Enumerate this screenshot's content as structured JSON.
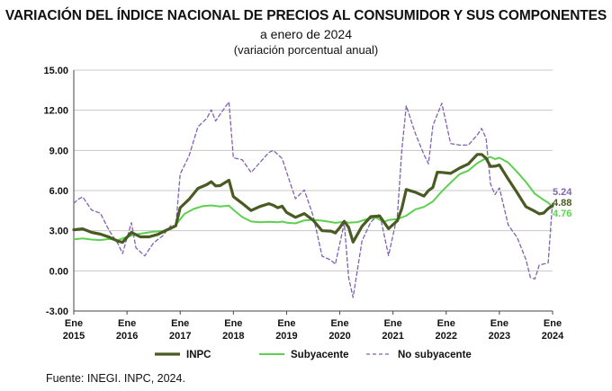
{
  "header": {
    "title": "VARIACIÓN DEL ÍNDICE NACIONAL DE PRECIOS AL CONSUMIDOR Y SUS COMPONENTES",
    "subtitle": "a enero de 2024",
    "subtitle2": "(variación porcentual anual)"
  },
  "footer": {
    "source": "Fuente: INEGI. INPC, 2024."
  },
  "colors": {
    "inpc": "#4a5a23",
    "subyacente": "#5bd14f",
    "no_subyacente": "#7f63ad",
    "grid": "#c8c8c8",
    "axis": "#444444"
  },
  "chart_data": {
    "type": "line",
    "title": "VARIACIÓN DEL ÍNDICE NACIONAL DE PRECIOS AL CONSUMIDOR Y SUS COMPONENTES",
    "ylim": [
      -3,
      15
    ],
    "ytick_labels": [
      "15.00",
      "12.00",
      "9.00",
      "6.00",
      "3.00",
      "0.00",
      "-3.00"
    ],
    "yticks": [
      15,
      12,
      9,
      6,
      3,
      0,
      -3
    ],
    "xlim": [
      "2015-01",
      "2024-01"
    ],
    "xtick_labels": [
      [
        "Ene",
        "2015"
      ],
      [
        "Ene",
        "2016"
      ],
      [
        "Ene",
        "2017"
      ],
      [
        "Ene",
        "2018"
      ],
      [
        "Ene",
        "2019"
      ],
      [
        "Ene",
        "2020"
      ],
      [
        "Ene",
        "2021"
      ],
      [
        "Ene",
        "2022"
      ],
      [
        "Ene",
        "2023"
      ],
      [
        "Ene",
        "2024"
      ]
    ],
    "xtick_positions": [
      "2015-01",
      "2016-01",
      "2017-01",
      "2018-01",
      "2019-01",
      "2020-01",
      "2021-01",
      "2022-01",
      "2023-01",
      "2024-01"
    ],
    "grid": "horizontal",
    "legend": "bottom",
    "end_labels": [
      "5.24",
      "4.88",
      "4.76"
    ],
    "series": [
      {
        "name": "INPC",
        "style": "solid-thick",
        "points": [
          [
            "2015-01",
            3.07
          ],
          [
            "2015-03",
            3.14
          ],
          [
            "2015-05",
            2.88
          ],
          [
            "2015-07",
            2.74
          ],
          [
            "2015-09",
            2.52
          ],
          [
            "2015-11",
            2.21
          ],
          [
            "2015-12",
            2.13
          ],
          [
            "2016-02",
            2.87
          ],
          [
            "2016-04",
            2.54
          ],
          [
            "2016-06",
            2.54
          ],
          [
            "2016-08",
            2.73
          ],
          [
            "2016-10",
            3.06
          ],
          [
            "2016-12",
            3.36
          ],
          [
            "2017-01",
            4.72
          ],
          [
            "2017-03",
            5.35
          ],
          [
            "2017-05",
            6.16
          ],
          [
            "2017-07",
            6.44
          ],
          [
            "2017-08",
            6.66
          ],
          [
            "2017-09",
            6.35
          ],
          [
            "2017-10",
            6.37
          ],
          [
            "2017-12",
            6.77
          ],
          [
            "2018-01",
            5.55
          ],
          [
            "2018-03",
            5.04
          ],
          [
            "2018-05",
            4.51
          ],
          [
            "2018-07",
            4.81
          ],
          [
            "2018-09",
            5.02
          ],
          [
            "2018-10",
            4.9
          ],
          [
            "2018-11",
            4.72
          ],
          [
            "2018-12",
            4.83
          ],
          [
            "2019-01",
            4.37
          ],
          [
            "2019-03",
            4.0
          ],
          [
            "2019-05",
            4.28
          ],
          [
            "2019-07",
            3.78
          ],
          [
            "2019-09",
            3.0
          ],
          [
            "2019-11",
            2.97
          ],
          [
            "2019-12",
            2.83
          ],
          [
            "2020-01",
            3.24
          ],
          [
            "2020-02",
            3.7
          ],
          [
            "2020-03",
            3.25
          ],
          [
            "2020-04",
            2.15
          ],
          [
            "2020-06",
            3.33
          ],
          [
            "2020-08",
            4.05
          ],
          [
            "2020-10",
            4.09
          ],
          [
            "2020-12",
            3.15
          ],
          [
            "2021-02",
            3.76
          ],
          [
            "2021-03",
            4.67
          ],
          [
            "2021-04",
            6.08
          ],
          [
            "2021-06",
            5.88
          ],
          [
            "2021-08",
            5.59
          ],
          [
            "2021-09",
            6.0
          ],
          [
            "2021-10",
            6.24
          ],
          [
            "2021-11",
            7.37
          ],
          [
            "2021-12",
            7.36
          ],
          [
            "2022-02",
            7.28
          ],
          [
            "2022-04",
            7.68
          ],
          [
            "2022-06",
            7.99
          ],
          [
            "2022-08",
            8.7
          ],
          [
            "2022-09",
            8.7
          ],
          [
            "2022-10",
            8.41
          ],
          [
            "2022-11",
            7.8
          ],
          [
            "2022-12",
            7.82
          ],
          [
            "2023-01",
            7.91
          ],
          [
            "2023-03",
            6.85
          ],
          [
            "2023-05",
            5.84
          ],
          [
            "2023-07",
            4.79
          ],
          [
            "2023-09",
            4.45
          ],
          [
            "2023-10",
            4.26
          ],
          [
            "2023-11",
            4.32
          ],
          [
            "2023-12",
            4.66
          ],
          [
            "2024-01",
            4.88
          ]
        ]
      },
      {
        "name": "Subyacente",
        "style": "solid",
        "points": [
          [
            "2015-01",
            2.35
          ],
          [
            "2015-03",
            2.42
          ],
          [
            "2015-05",
            2.34
          ],
          [
            "2015-07",
            2.3
          ],
          [
            "2015-09",
            2.38
          ],
          [
            "2015-11",
            2.3
          ],
          [
            "2016-01",
            2.54
          ],
          [
            "2016-03",
            2.73
          ],
          [
            "2016-05",
            2.83
          ],
          [
            "2016-07",
            2.93
          ],
          [
            "2016-09",
            2.97
          ],
          [
            "2016-11",
            3.13
          ],
          [
            "2016-12",
            3.44
          ],
          [
            "2017-02",
            4.26
          ],
          [
            "2017-04",
            4.62
          ],
          [
            "2017-06",
            4.83
          ],
          [
            "2017-08",
            4.89
          ],
          [
            "2017-10",
            4.81
          ],
          [
            "2017-12",
            4.87
          ],
          [
            "2018-01",
            4.56
          ],
          [
            "2018-03",
            4.02
          ],
          [
            "2018-05",
            3.69
          ],
          [
            "2018-07",
            3.63
          ],
          [
            "2018-09",
            3.67
          ],
          [
            "2018-11",
            3.63
          ],
          [
            "2018-12",
            3.68
          ],
          [
            "2019-01",
            3.6
          ],
          [
            "2019-03",
            3.55
          ],
          [
            "2019-05",
            3.77
          ],
          [
            "2019-07",
            3.82
          ],
          [
            "2019-09",
            3.75
          ],
          [
            "2019-11",
            3.65
          ],
          [
            "2019-12",
            3.59
          ],
          [
            "2020-02",
            3.66
          ],
          [
            "2020-03",
            3.6
          ],
          [
            "2020-05",
            3.64
          ],
          [
            "2020-07",
            3.85
          ],
          [
            "2020-09",
            3.99
          ],
          [
            "2020-11",
            3.66
          ],
          [
            "2020-12",
            3.8
          ],
          [
            "2021-02",
            3.87
          ],
          [
            "2021-04",
            4.12
          ],
          [
            "2021-06",
            4.58
          ],
          [
            "2021-08",
            4.78
          ],
          [
            "2021-10",
            5.19
          ],
          [
            "2021-12",
            5.94
          ],
          [
            "2022-02",
            6.59
          ],
          [
            "2022-04",
            7.22
          ],
          [
            "2022-06",
            7.49
          ],
          [
            "2022-08",
            8.05
          ],
          [
            "2022-10",
            8.42
          ],
          [
            "2022-11",
            8.51
          ],
          [
            "2022-12",
            8.35
          ],
          [
            "2023-01",
            8.45
          ],
          [
            "2023-03",
            8.09
          ],
          [
            "2023-05",
            7.39
          ],
          [
            "2023-07",
            6.64
          ],
          [
            "2023-09",
            5.76
          ],
          [
            "2023-11",
            5.3
          ],
          [
            "2023-12",
            5.09
          ],
          [
            "2024-01",
            4.76
          ]
        ]
      },
      {
        "name": "No subyacente",
        "style": "dashed",
        "points": [
          [
            "2015-01",
            5.05
          ],
          [
            "2015-02",
            5.35
          ],
          [
            "2015-03",
            5.53
          ],
          [
            "2015-05",
            4.55
          ],
          [
            "2015-07",
            4.3
          ],
          [
            "2015-09",
            3.0
          ],
          [
            "2015-11",
            2.0
          ],
          [
            "2015-12",
            1.29
          ],
          [
            "2016-02",
            3.6
          ],
          [
            "2016-03",
            1.73
          ],
          [
            "2016-05",
            1.12
          ],
          [
            "2016-07",
            2.1
          ],
          [
            "2016-09",
            2.6
          ],
          [
            "2016-11",
            3.43
          ],
          [
            "2016-12",
            3.33
          ],
          [
            "2017-01",
            7.23
          ],
          [
            "2017-03",
            8.6
          ],
          [
            "2017-05",
            10.76
          ],
          [
            "2017-07",
            11.4
          ],
          [
            "2017-08",
            12.03
          ],
          [
            "2017-09",
            11.2
          ],
          [
            "2017-10",
            11.7
          ],
          [
            "2017-12",
            12.62
          ],
          [
            "2018-01",
            8.45
          ],
          [
            "2018-03",
            8.3
          ],
          [
            "2018-05",
            7.35
          ],
          [
            "2018-07",
            8.1
          ],
          [
            "2018-09",
            8.85
          ],
          [
            "2018-10",
            9.0
          ],
          [
            "2018-12",
            8.4
          ],
          [
            "2019-01",
            7.39
          ],
          [
            "2019-03",
            5.39
          ],
          [
            "2019-05",
            6.05
          ],
          [
            "2019-07",
            4.1
          ],
          [
            "2019-09",
            1.1
          ],
          [
            "2019-11",
            0.8
          ],
          [
            "2019-12",
            0.49
          ],
          [
            "2020-02",
            3.58
          ],
          [
            "2020-03",
            -0.5
          ],
          [
            "2020-04",
            -1.99
          ],
          [
            "2020-06",
            2.23
          ],
          [
            "2020-08",
            3.65
          ],
          [
            "2020-10",
            4.26
          ],
          [
            "2020-12",
            1.14
          ],
          [
            "2021-02",
            4.17
          ],
          [
            "2021-03",
            9.04
          ],
          [
            "2021-04",
            12.34
          ],
          [
            "2021-06",
            10.3
          ],
          [
            "2021-08",
            8.68
          ],
          [
            "2021-09",
            8.0
          ],
          [
            "2021-10",
            10.86
          ],
          [
            "2021-12",
            12.52
          ],
          [
            "2022-02",
            9.51
          ],
          [
            "2022-04",
            9.4
          ],
          [
            "2022-06",
            9.4
          ],
          [
            "2022-08",
            10.16
          ],
          [
            "2022-09",
            10.64
          ],
          [
            "2022-10",
            9.9
          ],
          [
            "2022-11",
            6.5
          ],
          [
            "2022-12",
            5.7
          ],
          [
            "2023-01",
            6.2
          ],
          [
            "2023-03",
            3.43
          ],
          [
            "2023-05",
            2.5
          ],
          [
            "2023-07",
            0.84
          ],
          [
            "2023-08",
            -0.5
          ],
          [
            "2023-09",
            -0.6
          ],
          [
            "2023-10",
            0.43
          ],
          [
            "2023-12",
            0.6
          ],
          [
            "2024-01",
            5.24
          ]
        ]
      }
    ]
  }
}
